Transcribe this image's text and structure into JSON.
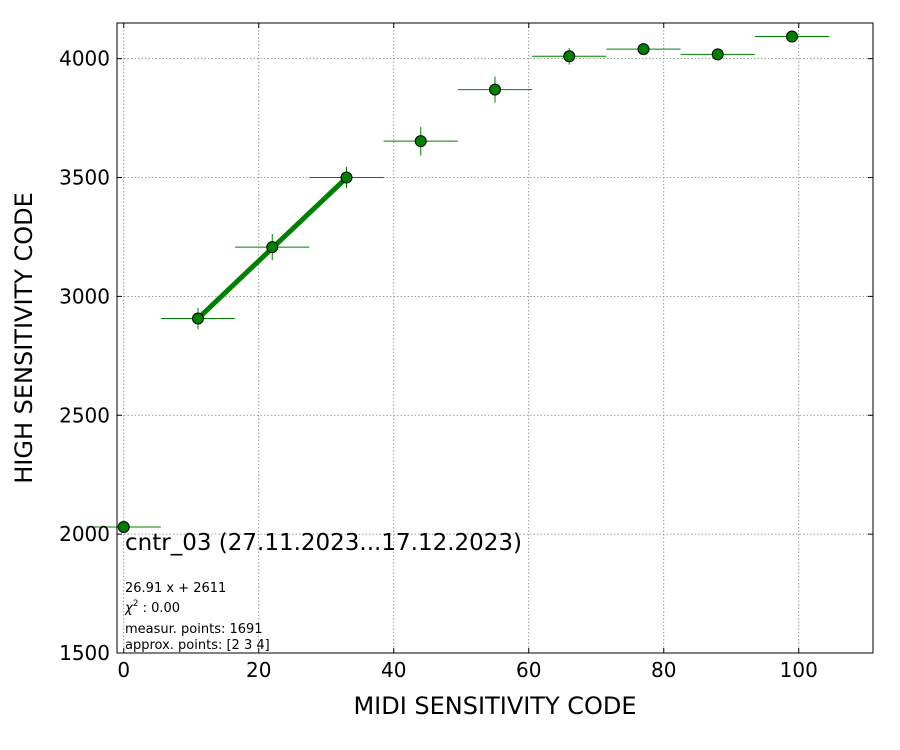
{
  "chart_data": {
    "type": "scatter",
    "title": "",
    "xlabel": "MIDI SENSITIVITY CODE",
    "ylabel": "HIGH SENSITIVITY CODE",
    "xlim": [
      -1,
      111
    ],
    "ylim": [
      1500,
      4150
    ],
    "x_ticks": [
      0,
      20,
      40,
      60,
      80,
      100
    ],
    "y_ticks": [
      1500,
      2000,
      2500,
      3000,
      3500,
      4000
    ],
    "grid": true,
    "colors": {
      "marker": "#008000",
      "marker_edge": "#000000",
      "fit_line": "#008000",
      "error_bar": "#008000",
      "grid": "#808080"
    },
    "points": [
      {
        "x": 0,
        "y": 2030,
        "xerr": 5.5,
        "yerr": 15
      },
      {
        "x": 11,
        "y": 2907,
        "xerr": 5.5,
        "yerr": 45
      },
      {
        "x": 22,
        "y": 3207,
        "xerr": 5.5,
        "yerr": 55
      },
      {
        "x": 33,
        "y": 3500,
        "xerr": 5.5,
        "yerr": 45
      },
      {
        "x": 44,
        "y": 3653,
        "xerr": 5.5,
        "yerr": 60
      },
      {
        "x": 55,
        "y": 3870,
        "xerr": 5.5,
        "yerr": 55
      },
      {
        "x": 66,
        "y": 4010,
        "xerr": 5.5,
        "yerr": 35
      },
      {
        "x": 77,
        "y": 4040,
        "xerr": 5.5,
        "yerr": 20
      },
      {
        "x": 88,
        "y": 4018,
        "xerr": 5.5,
        "yerr": 25
      },
      {
        "x": 99,
        "y": 4093,
        "xerr": 5.5,
        "yerr": 15
      }
    ],
    "fit_line": {
      "slope": 26.91,
      "intercept": 2611,
      "x_range": [
        11,
        33
      ]
    },
    "annotations": {
      "main": "cntr_03 (27.11.2023...17.12.2023)",
      "equation": "26.91 x + 2611",
      "chi2_symbol": "χ",
      "chi2_exponent": "2",
      "chi2_value": " : 0.00",
      "measurement_points": "measur. points: 1691",
      "approx_points": "approx. points: [2 3 4]"
    }
  }
}
